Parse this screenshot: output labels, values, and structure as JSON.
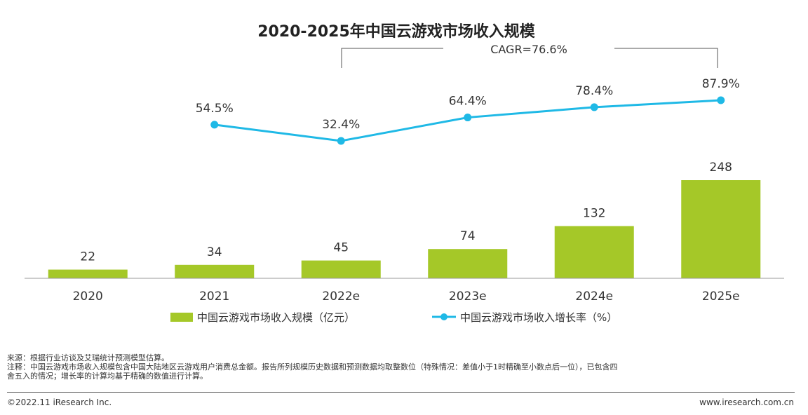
{
  "chart_data": {
    "type": "bar",
    "title": "2020-2025年中国云游戏市场收入规模",
    "categories": [
      "2020",
      "2021",
      "2022e",
      "2023e",
      "2024e",
      "2025e"
    ],
    "series": [
      {
        "name": "中国云游戏市场收入规模（亿元）",
        "type": "bar",
        "values": [
          22,
          34,
          45,
          74,
          132,
          248
        ],
        "labels": [
          "22",
          "34",
          "45",
          "74",
          "132",
          "248"
        ],
        "color": "#a5c828"
      },
      {
        "name": "中国云游戏市场收入增长率（%）",
        "type": "line",
        "values": [
          null,
          54.5,
          32.4,
          64.4,
          78.4,
          87.9
        ],
        "labels": [
          "",
          "54.5%",
          "32.4%",
          "64.4%",
          "78.4%",
          "87.9%"
        ],
        "color": "#1fb9e6"
      }
    ],
    "annotation": "CAGR=76.6%",
    "grid": false
  },
  "notes": {
    "source": "来源：根据行业访谈及艾瑞统计预测模型估算。",
    "note_line1": "注释：中国云游戏市场收入规模包含中国大陆地区云游戏用户消费总金额。报告所列规模历史数据和预测数据均取整数位（特殊情况：差值小于1时精确至小数点后一位），已包含四",
    "note_line2": "舍五入的情况；增长率的计算均基于精确的数值进行计算。"
  },
  "footer": {
    "copyright": "©2022.11 iResearch Inc.",
    "website": "www.iresearch.com.cn"
  }
}
